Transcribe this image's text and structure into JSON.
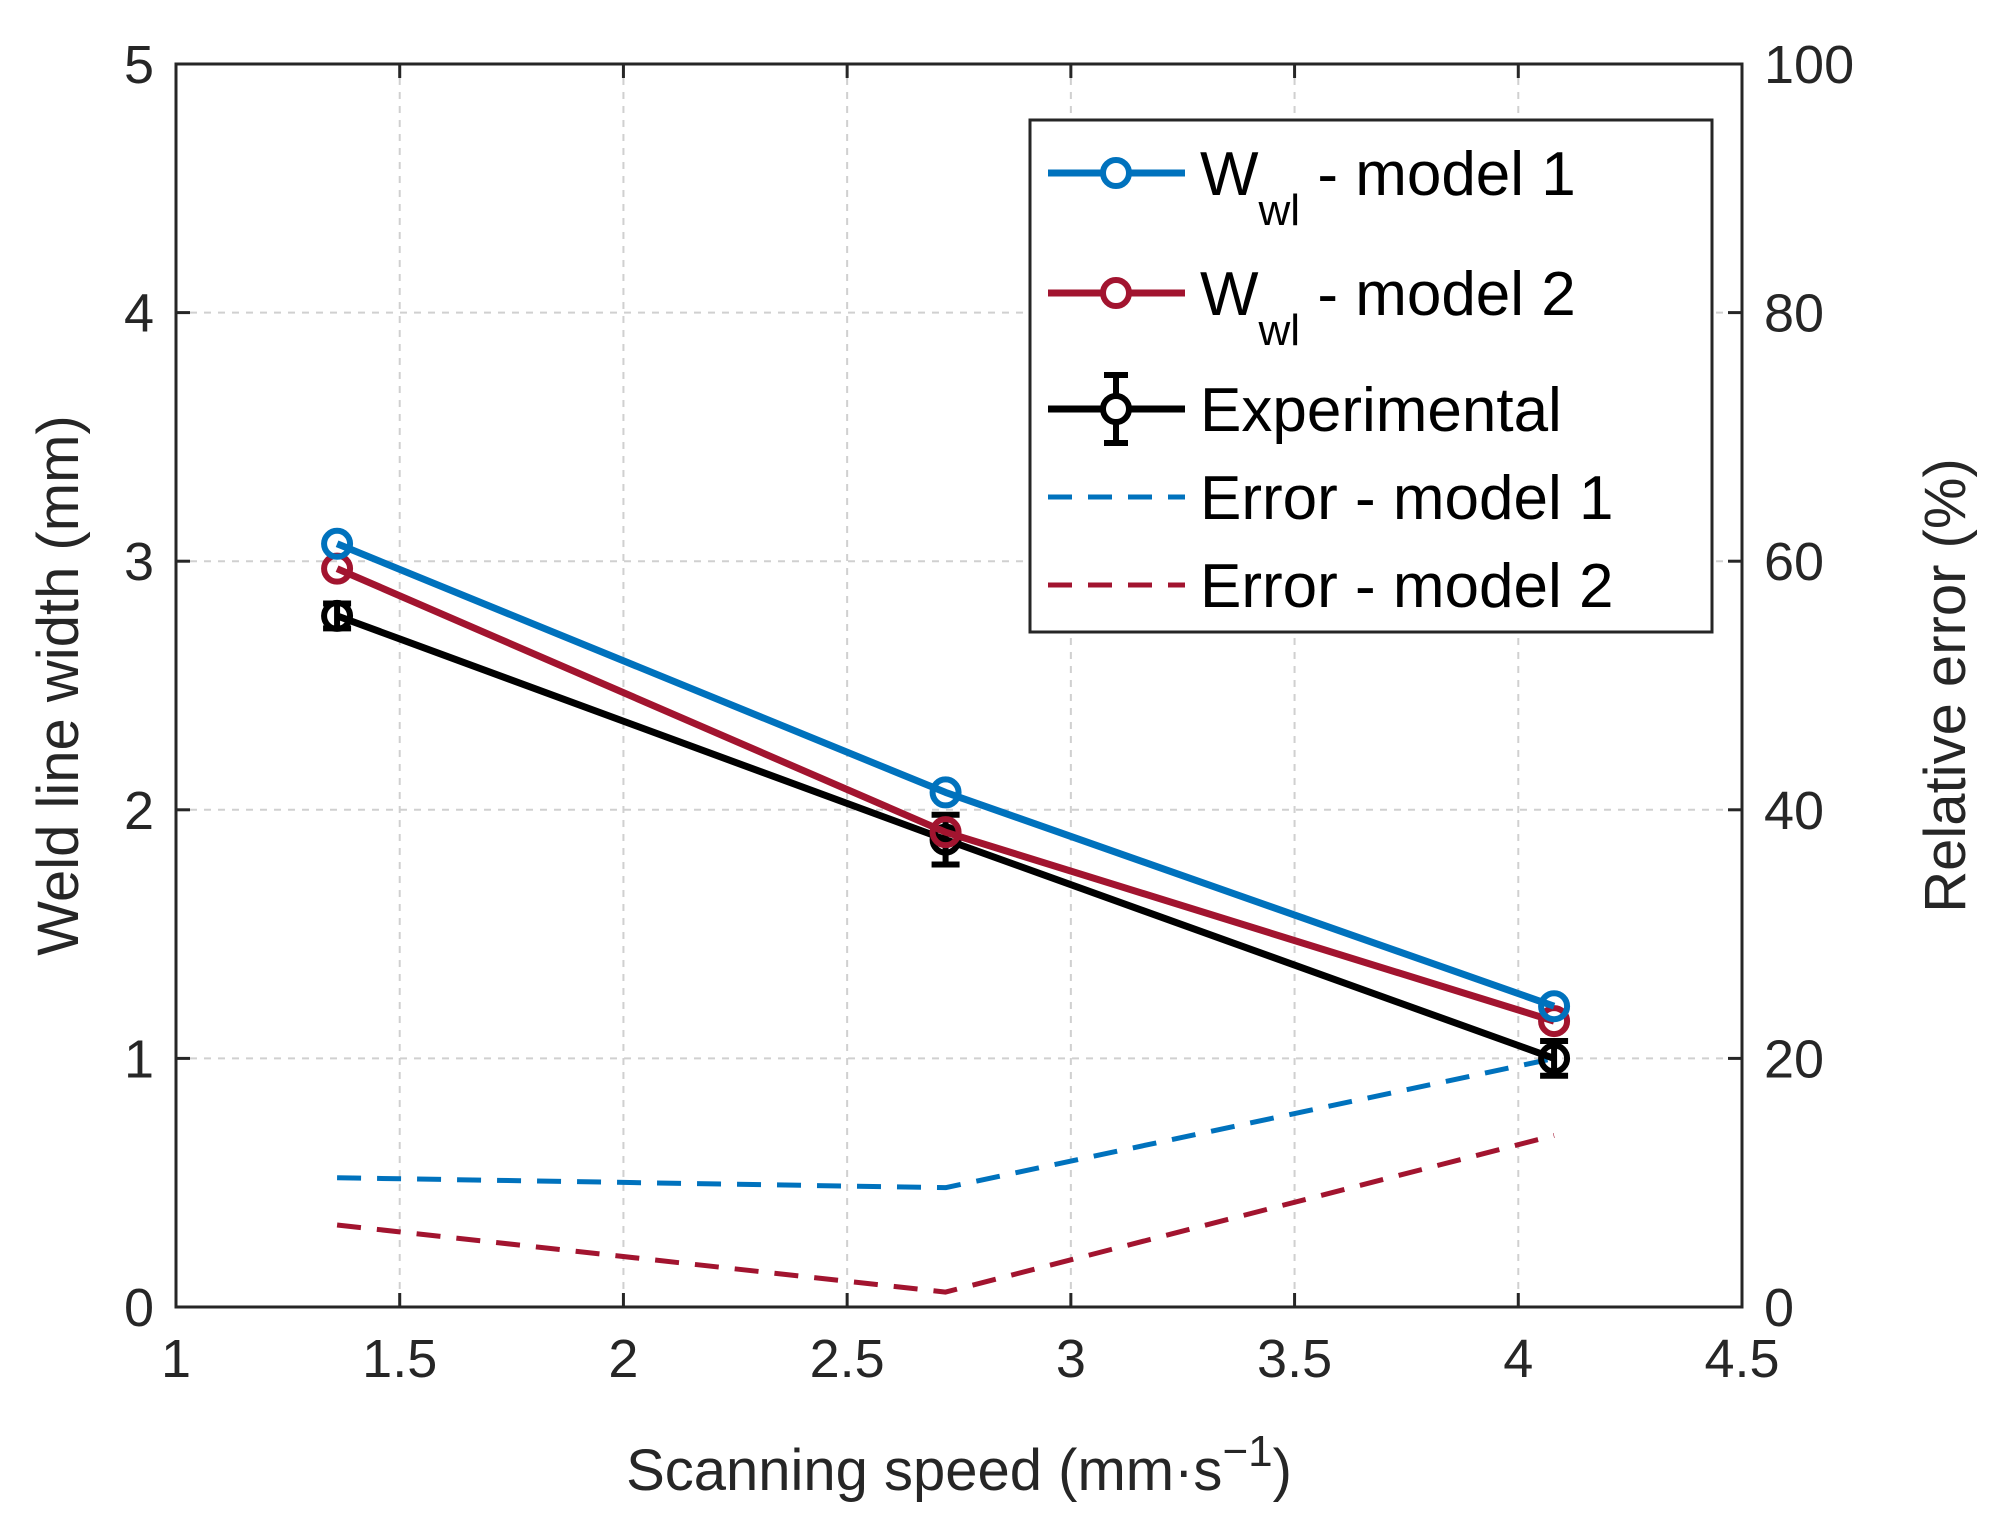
{
  "colors": {
    "model1": "#0072bd",
    "model2": "#a2142f",
    "experimental": "#000000",
    "grid": "#d0d0d0",
    "axis": "#262626"
  },
  "chart_data": {
    "type": "line",
    "xlabel": "Scanning speed (mm·s",
    "xlabel_sup": "−1",
    "xlabel_end": ")",
    "ylabel": "Weld line width (mm)",
    "y2label": "Relative error (%)",
    "xlim": [
      1,
      4.5
    ],
    "ylim": [
      0,
      5
    ],
    "y2lim": [
      0,
      100
    ],
    "grid": true,
    "xticks": [
      {
        "value": 1,
        "label": "1"
      },
      {
        "value": 1.5,
        "label": "1.5"
      },
      {
        "value": 2,
        "label": "2"
      },
      {
        "value": 2.5,
        "label": "2.5"
      },
      {
        "value": 3,
        "label": "3"
      },
      {
        "value": 3.5,
        "label": "3.5"
      },
      {
        "value": 4,
        "label": "4"
      },
      {
        "value": 4.5,
        "label": "4.5"
      }
    ],
    "yticks": [
      {
        "value": 0,
        "label": "0"
      },
      {
        "value": 1,
        "label": "1"
      },
      {
        "value": 2,
        "label": "2"
      },
      {
        "value": 3,
        "label": "3"
      },
      {
        "value": 4,
        "label": "4"
      },
      {
        "value": 5,
        "label": "5"
      }
    ],
    "y2ticks": [
      {
        "value": 0,
        "label": "0"
      },
      {
        "value": 20,
        "label": "20"
      },
      {
        "value": 40,
        "label": "40"
      },
      {
        "value": 60,
        "label": "60"
      },
      {
        "value": 80,
        "label": "80"
      },
      {
        "value": 100,
        "label": "100"
      }
    ],
    "legend_position": "top-right",
    "series": [
      {
        "id": "model1",
        "name": "W",
        "name_sub": "wl",
        "name_end": " - model 1",
        "axis": "left",
        "style": "solid",
        "marker": "circle",
        "color_key": "model1",
        "x": [
          1.36,
          2.72,
          4.08
        ],
        "y": [
          3.07,
          2.07,
          1.21
        ]
      },
      {
        "id": "model2",
        "name": "W",
        "name_sub": "wl",
        "name_end": " - model 2",
        "axis": "left",
        "style": "solid",
        "marker": "circle",
        "color_key": "model2",
        "x": [
          1.36,
          2.72,
          4.08
        ],
        "y": [
          2.97,
          1.91,
          1.15
        ]
      },
      {
        "id": "experimental",
        "name": "Experimental",
        "axis": "left",
        "style": "solid",
        "marker": "circle",
        "errorbar": true,
        "color_key": "experimental",
        "x": [
          1.36,
          2.72,
          4.08
        ],
        "y": [
          2.78,
          1.88,
          1.0
        ],
        "err": [
          0.05,
          0.1,
          0.07
        ]
      },
      {
        "id": "error1",
        "name": "Error - model 1",
        "axis": "right",
        "style": "dashed",
        "color_key": "model1",
        "x": [
          1.36,
          2.72,
          4.08
        ],
        "y": [
          10.4,
          9.6,
          20.0
        ]
      },
      {
        "id": "error2",
        "name": "Error - model 2",
        "axis": "right",
        "style": "dashed",
        "color_key": "model2",
        "x": [
          1.36,
          2.72,
          4.08
        ],
        "y": [
          6.6,
          1.2,
          13.8
        ]
      }
    ]
  }
}
